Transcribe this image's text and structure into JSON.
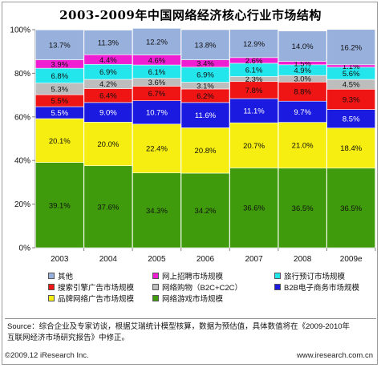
{
  "chart_data": {
    "type": "bar",
    "stacked": true,
    "title": "2003-2009年中国网络经济核心行业市场结构",
    "categories": [
      "2003",
      "2004",
      "2005",
      "2006",
      "2007",
      "2008",
      "2009e"
    ],
    "y_ticks": [
      "0%",
      "20%",
      "40%",
      "60%",
      "80%",
      "100%"
    ],
    "ylim": [
      0,
      100
    ],
    "grid": false,
    "legend_position": "bottom",
    "series": [
      {
        "name": "网络游戏市场规模",
        "color": "#3f9b0b",
        "values": [
          39.1,
          37.6,
          34.3,
          34.2,
          36.6,
          36.5,
          36.5
        ]
      },
      {
        "name": "品牌网络广告市场规模",
        "color": "#f5ee10",
        "values": [
          20.1,
          20.0,
          22.4,
          20.8,
          20.7,
          21.0,
          18.4
        ]
      },
      {
        "name": "B2B电子商务市场规模",
        "color": "#1a1ae0",
        "values": [
          5.5,
          9.0,
          10.7,
          11.6,
          11.1,
          9.7,
          8.5
        ]
      },
      {
        "name": "搜索引擎广告市场规模",
        "color": "#ef1515",
        "values": [
          5.5,
          6.4,
          6.7,
          6.2,
          7.8,
          8.8,
          9.3
        ]
      },
      {
        "name": "网络购物（B2C+C2C）",
        "color": "#bdbdbd",
        "values": [
          5.3,
          4.2,
          3.6,
          3.1,
          2.3,
          3.0,
          4.5
        ]
      },
      {
        "name": "旅行预订市场规模",
        "color": "#22e6ec",
        "values": [
          6.8,
          6.9,
          6.1,
          6.9,
          6.1,
          4.9,
          5.6
        ]
      },
      {
        "name": "网上招聘市场规模",
        "color": "#f01ed2",
        "values": [
          3.9,
          4.4,
          4.6,
          3.4,
          2.6,
          1.5,
          1.1
        ]
      },
      {
        "name": "其他",
        "color": "#98b0dc",
        "values": [
          13.7,
          11.3,
          12.2,
          13.8,
          12.9,
          14.0,
          16.2
        ]
      }
    ]
  },
  "legend_order": [
    7,
    6,
    5,
    3,
    4,
    2,
    1,
    0
  ],
  "footer": {
    "source_line1": "Source：综合企业及专家访谈，根据艾瑞统计模型核算，数据为预估值，具体数值将在《2009-2010年",
    "source_line2": "互联网经济市场研究报告》中修正。",
    "copyright": "©2009.12 iResearch Inc.",
    "website": "www.iresearch.com.cn"
  }
}
